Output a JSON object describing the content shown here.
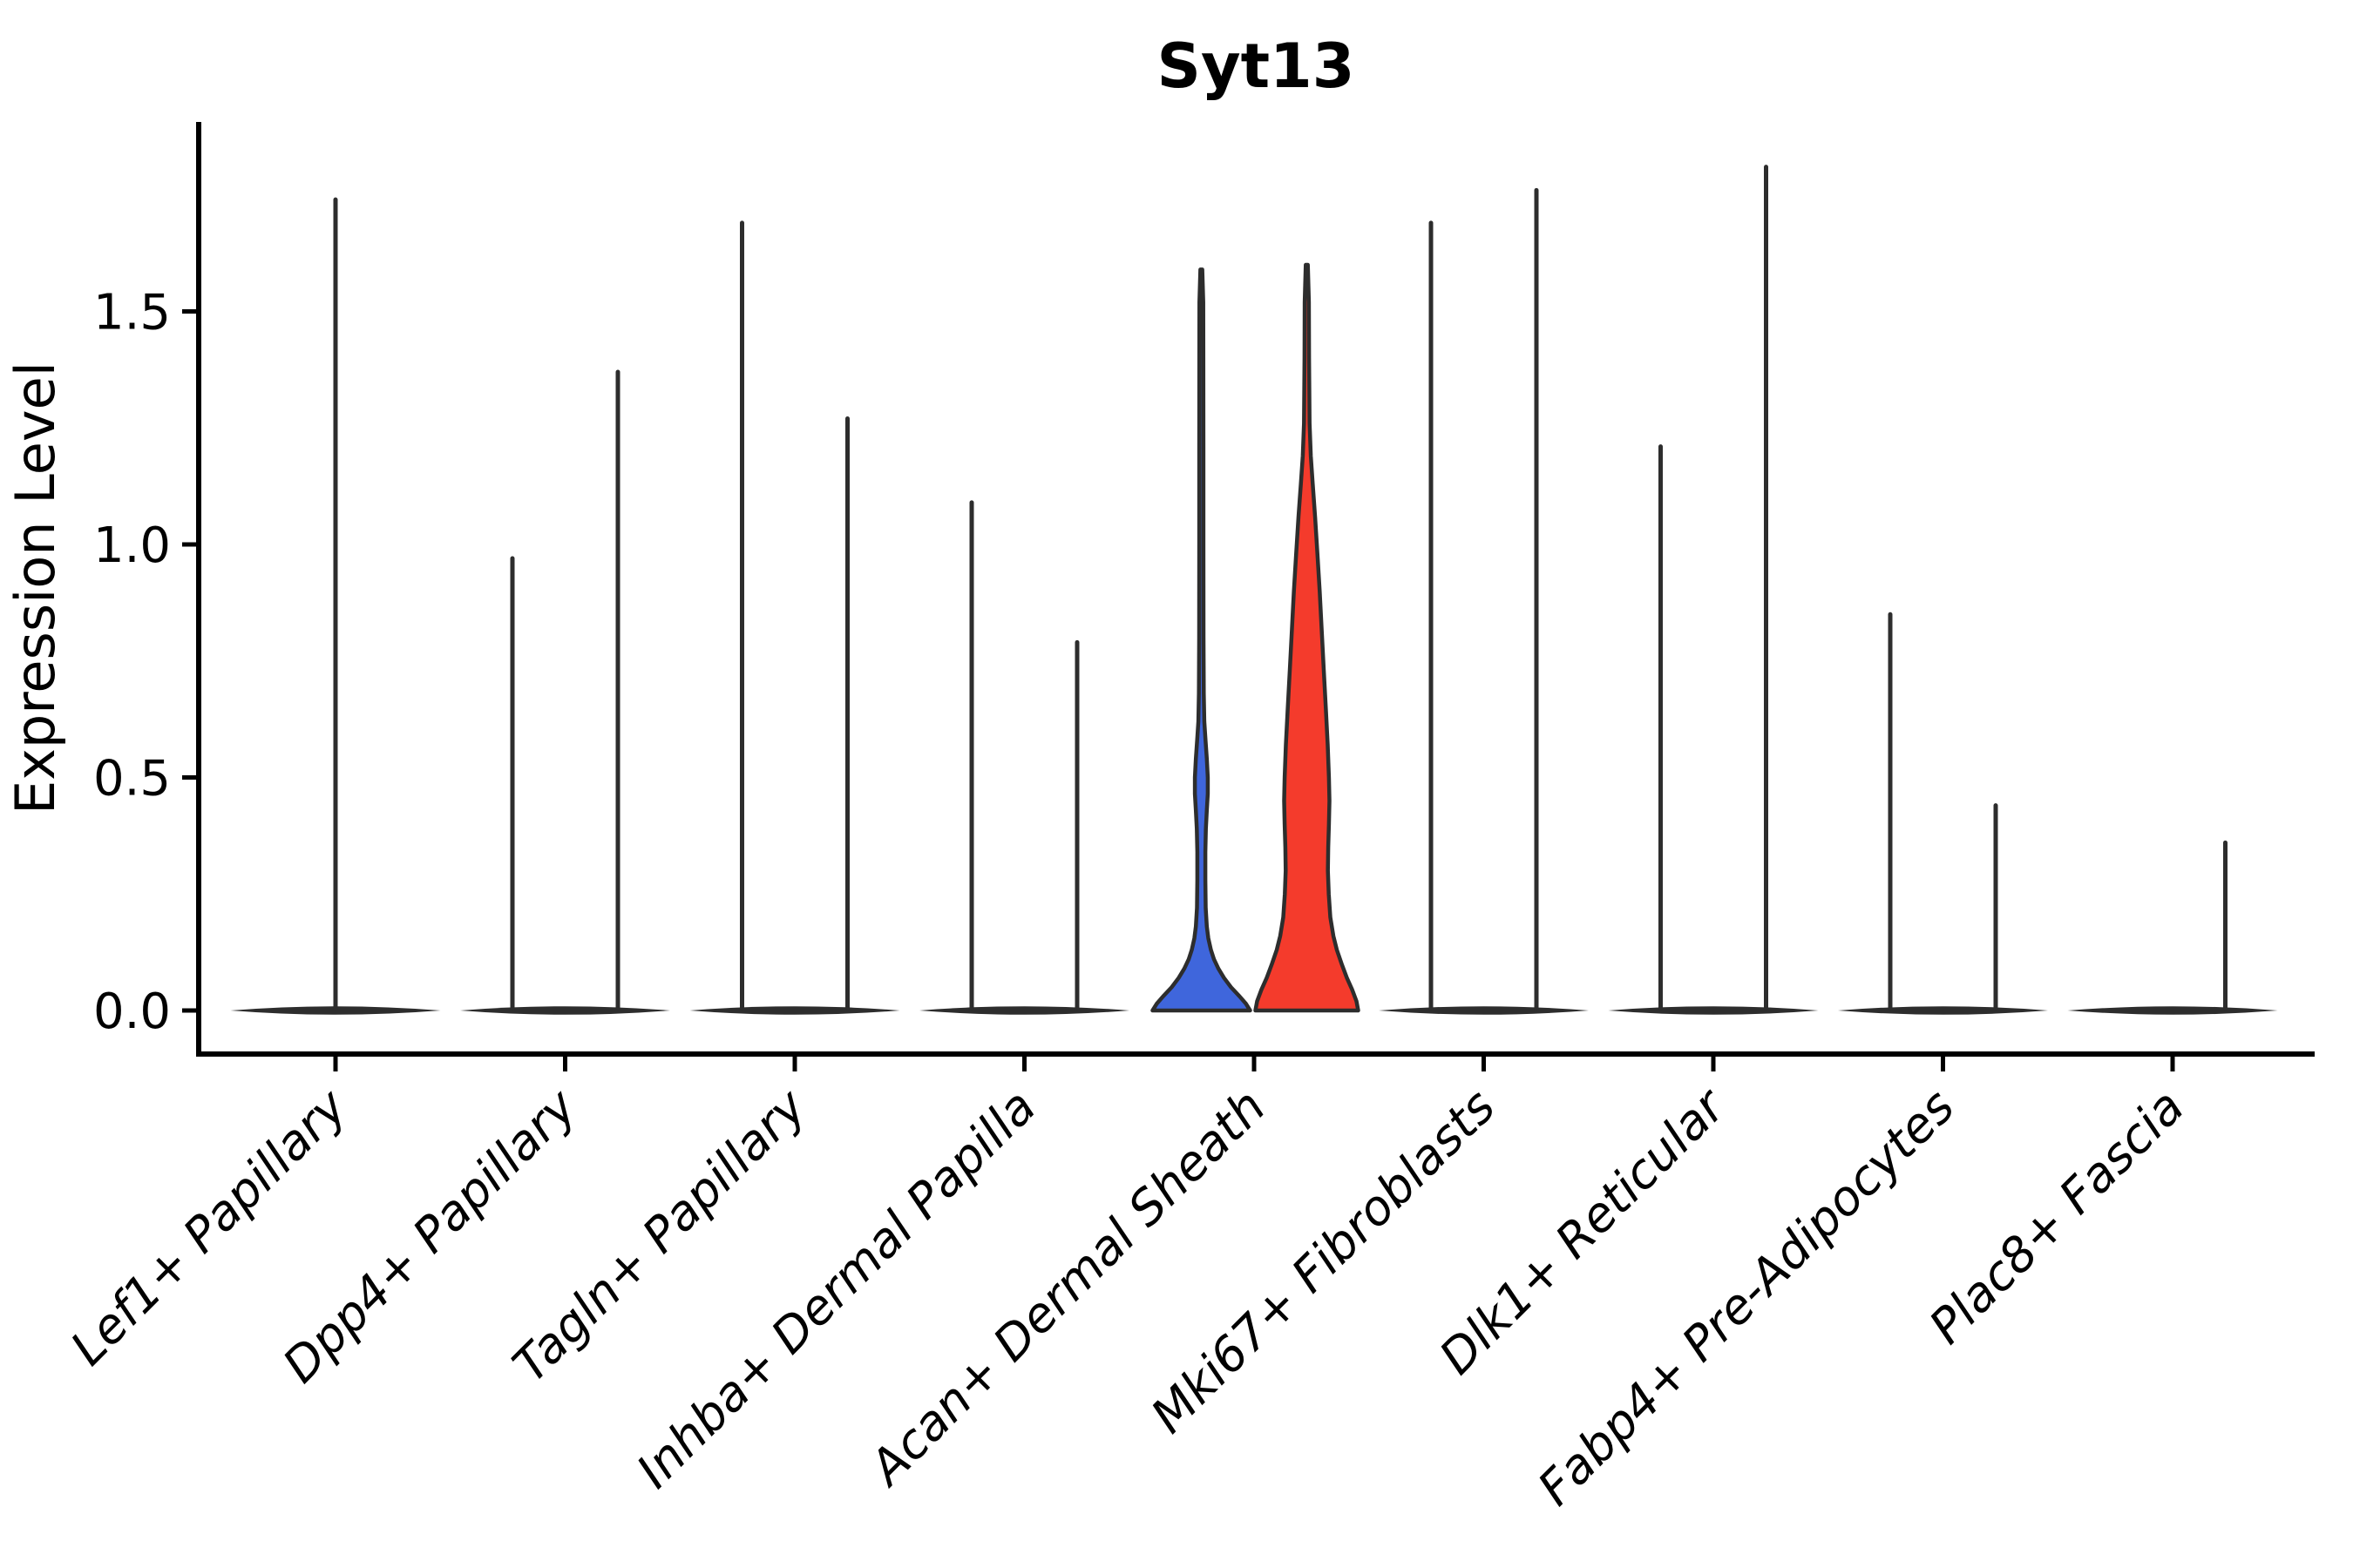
{
  "figure": {
    "title": "Syt13",
    "ylabel": "Expression Level",
    "background": "#ffffff"
  },
  "chart_data": {
    "type": "violin",
    "title": "Syt13",
    "xlabel": "",
    "ylabel": "Expression Level",
    "ylim": [
      -0.09,
      1.91
    ],
    "yticks": [
      0.0,
      0.5,
      1.0,
      1.5
    ],
    "ytick_labels": [
      "0.0",
      "0.5",
      "1.0",
      "1.5"
    ],
    "grid": false,
    "legend": "none",
    "categories": [
      "Lef1+ Papillary",
      "Dpp4+ Papillary",
      "Tagln+ Papillary",
      "Inhba+ Dermal Papilla",
      "Acan+ Dermal Sheath",
      "Mki67+ Fibroblasts",
      "Dlk1+ Reticular",
      "Fabp4+ Pre-Adipocytes",
      "Plac8+ Fascia"
    ],
    "violins": [
      {
        "category": "Lef1+ Papillary",
        "parts": [
          {
            "slot": "full",
            "peak": 1.74,
            "fill": "none"
          }
        ]
      },
      {
        "category": "Dpp4+ Papillary",
        "parts": [
          {
            "slot": "left",
            "peak": 0.97,
            "fill": "none"
          },
          {
            "slot": "right",
            "peak": 1.37,
            "fill": "none"
          }
        ]
      },
      {
        "category": "Tagln+ Papillary",
        "parts": [
          {
            "slot": "left",
            "peak": 1.69,
            "fill": "none"
          },
          {
            "slot": "right",
            "peak": 1.27,
            "fill": "none"
          }
        ]
      },
      {
        "category": "Inhba+ Dermal Papilla",
        "parts": [
          {
            "slot": "left",
            "peak": 1.09,
            "fill": "none"
          },
          {
            "slot": "right",
            "peak": 0.79,
            "fill": "none"
          }
        ]
      },
      {
        "category": "Acan+ Dermal Sheath",
        "parts": [
          {
            "slot": "left",
            "peak": 1.59,
            "fill": "#3F66DC",
            "profile": [
              [
                0.0,
                56
              ],
              [
                0.015,
                51
              ],
              [
                0.03,
                44
              ],
              [
                0.05,
                34
              ],
              [
                0.07,
                26
              ],
              [
                0.09,
                19.5
              ],
              [
                0.11,
                14.5
              ],
              [
                0.13,
                11
              ],
              [
                0.155,
                8
              ],
              [
                0.18,
                6.3
              ],
              [
                0.22,
                5.0
              ],
              [
                0.28,
                4.6
              ],
              [
                0.34,
                4.6
              ],
              [
                0.39,
                5.2
              ],
              [
                0.43,
                6.3
              ],
              [
                0.465,
                7.4
              ],
              [
                0.5,
                7.4
              ],
              [
                0.54,
                6.3
              ],
              [
                0.58,
                4.8
              ],
              [
                0.62,
                3.4
              ],
              [
                0.68,
                2.8
              ],
              [
                0.8,
                2.5
              ],
              [
                1.0,
                2.4
              ],
              [
                1.2,
                2.4
              ],
              [
                1.4,
                2.3
              ],
              [
                1.52,
                2.2
              ],
              [
                1.59,
                1.1
              ]
            ]
          },
          {
            "slot": "right",
            "peak": 1.6,
            "fill": "#F43B2C",
            "profile": [
              [
                0.0,
                59
              ],
              [
                0.02,
                57
              ],
              [
                0.045,
                52
              ],
              [
                0.07,
                46
              ],
              [
                0.1,
                40
              ],
              [
                0.13,
                34.5
              ],
              [
                0.16,
                30.5
              ],
              [
                0.2,
                27
              ],
              [
                0.25,
                25.2
              ],
              [
                0.3,
                24.2
              ],
              [
                0.35,
                24.6
              ],
              [
                0.4,
                25.4
              ],
              [
                0.45,
                26.0
              ],
              [
                0.5,
                25.4
              ],
              [
                0.57,
                24.0
              ],
              [
                0.65,
                21.8
              ],
              [
                0.73,
                19.5
              ],
              [
                0.82,
                17
              ],
              [
                0.9,
                14.8
              ],
              [
                0.98,
                12.2
              ],
              [
                1.06,
                9.5
              ],
              [
                1.13,
                6.8
              ],
              [
                1.19,
                4.6
              ],
              [
                1.26,
                3.2
              ],
              [
                1.4,
                2.6
              ],
              [
                1.52,
                2.4
              ],
              [
                1.6,
                1.2
              ]
            ]
          }
        ]
      },
      {
        "category": "Mki67+ Fibroblasts",
        "parts": [
          {
            "slot": "left",
            "peak": 1.69,
            "fill": "none"
          },
          {
            "slot": "right",
            "peak": 1.76,
            "fill": "none"
          }
        ]
      },
      {
        "category": "Dlk1+ Reticular",
        "parts": [
          {
            "slot": "left",
            "peak": 1.21,
            "fill": "none"
          },
          {
            "slot": "right",
            "peak": 1.81,
            "fill": "none"
          }
        ]
      },
      {
        "category": "Fabp4+ Pre-Adipocytes",
        "parts": [
          {
            "slot": "left",
            "peak": 0.85,
            "fill": "none"
          },
          {
            "slot": "right",
            "peak": 0.44,
            "fill": "none"
          }
        ]
      },
      {
        "category": "Plac8+ Fascia",
        "parts": [
          {
            "slot": "left",
            "peak": null,
            "fill": "none"
          },
          {
            "slot": "right",
            "peak": 0.36,
            "fill": "none"
          }
        ]
      }
    ],
    "colors": {
      "left_group_fill": "#3F66DC",
      "right_group_fill": "#F43B2C",
      "violin_outline": "#2d2d2d",
      "axis": "#000000"
    }
  }
}
